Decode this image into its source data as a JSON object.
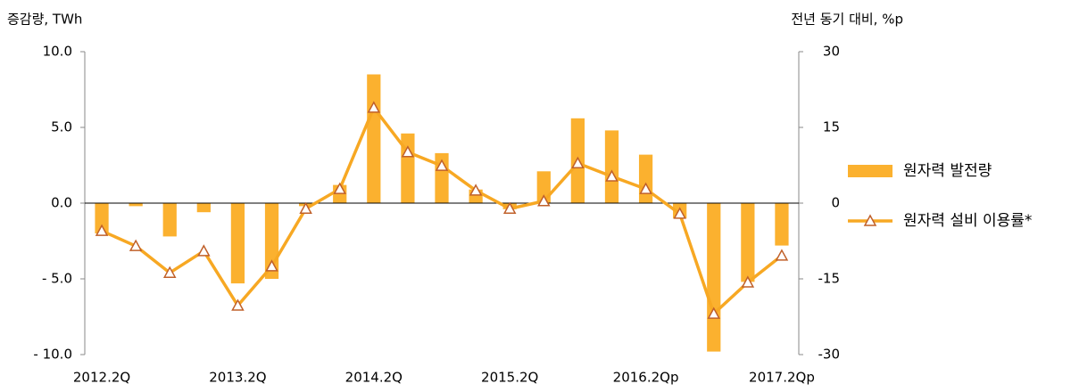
{
  "chart_data": {
    "type": "bar-line",
    "y_label": "증감량, TWh",
    "y2_label": "전년 동기 대비, %p",
    "categories": [
      "2012.2Q",
      null,
      null,
      null,
      "2013.2Q",
      null,
      null,
      null,
      "2014.2Q",
      null,
      null,
      null,
      "2015.2Q",
      null,
      null,
      null,
      "2016.2Qp",
      null,
      null,
      null,
      "2017.2Qp"
    ],
    "series": [
      {
        "name": "원자력 발전량",
        "type": "bar",
        "color": "#fbb12f",
        "axis": "y",
        "values": [
          -2.0,
          -0.2,
          -2.2,
          -0.6,
          -5.3,
          -5.0,
          -0.2,
          1.2,
          8.5,
          4.6,
          3.3,
          0.9,
          -0.4,
          2.1,
          5.6,
          4.8,
          3.2,
          -1.0,
          -9.8,
          -5.2,
          -2.8
        ]
      },
      {
        "name": "원자력 설비 이용률*",
        "type": "line",
        "color": "#f7a823",
        "marker_color": "#c0602a",
        "axis": "y2",
        "values": [
          -5.5,
          -8.5,
          -13.8,
          -9.5,
          -20.3,
          -12.5,
          -1.1,
          2.8,
          18.9,
          10.1,
          7.4,
          2.5,
          -1.1,
          0.4,
          7.9,
          5.3,
          2.8,
          -2.1,
          -21.9,
          -15.7,
          -10.4
        ]
      }
    ],
    "ylim": [
      -10,
      10
    ],
    "yticks": [
      {
        "value": 10,
        "label": "10.0"
      },
      {
        "value": 5,
        "label": "5.0"
      },
      {
        "value": 0,
        "label": "0.0"
      },
      {
        "value": -5,
        "label": "- 5.0"
      },
      {
        "value": -10,
        "label": "- 10.0"
      }
    ],
    "y2lim": [
      -30,
      30
    ],
    "y2ticks": [
      30,
      15,
      0,
      -15,
      -30
    ],
    "legend": "right",
    "grid": false
  }
}
